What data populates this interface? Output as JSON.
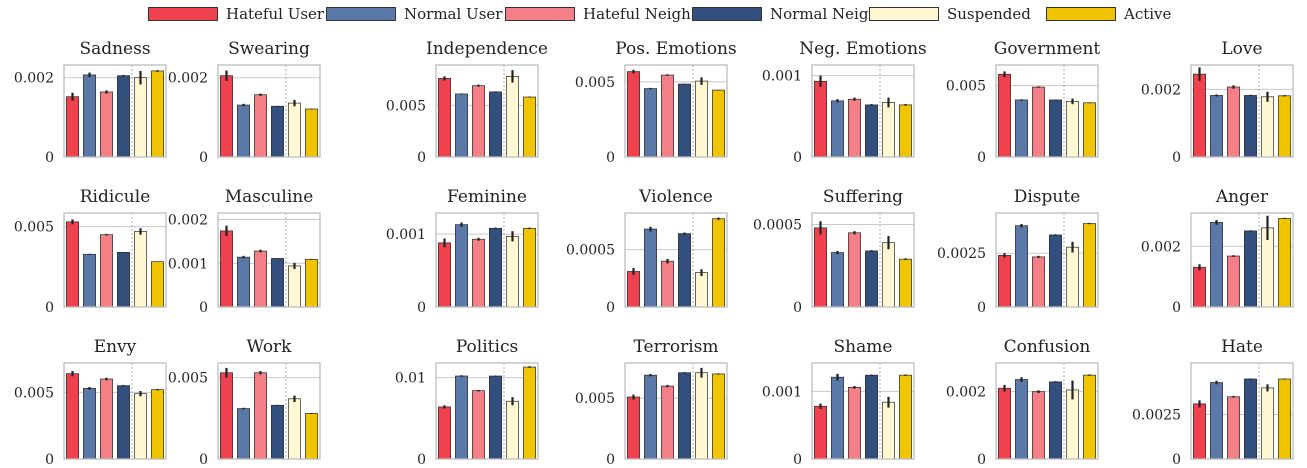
{
  "legend": [
    {
      "name": "Hateful User",
      "color": "#f0414f"
    },
    {
      "name": "Normal User",
      "color": "#5b79a8"
    },
    {
      "name": "Hateful Neigh.",
      "color": "#f47f87"
    },
    {
      "name": "Normal Neigh.",
      "color": "#324f7e"
    },
    {
      "name": "Suspended",
      "color": "#fff8d3"
    },
    {
      "name": "Active",
      "color": "#f0c400"
    }
  ],
  "chart_data": [
    {
      "type": "bar",
      "title": "Sadness",
      "categories": [
        "Hateful User",
        "Normal User",
        "Hateful Neigh.",
        "Normal Neigh.",
        "Suspended",
        "Active"
      ],
      "values": [
        0.00152,
        0.00207,
        0.00164,
        0.00205,
        0.002,
        0.00217
      ],
      "errors": [
        0.0001,
        6e-05,
        4e-05,
        2e-05,
        0.00017,
        2e-05
      ],
      "ylim": [
        0,
        0.00232
      ],
      "ytick_values": [
        0,
        0.002
      ],
      "ytick_labels": [
        "0",
        "0.002"
      ],
      "gridlines": [
        0.002
      ]
    },
    {
      "type": "bar",
      "title": "Swearing",
      "categories": [
        "Hateful User",
        "Normal User",
        "Hateful Neigh.",
        "Normal Neigh.",
        "Suspended",
        "Active"
      ],
      "values": [
        0.00205,
        0.00131,
        0.00157,
        0.00128,
        0.00136,
        0.00121
      ],
      "errors": [
        0.00013,
        3e-05,
        3e-05,
        1e-05,
        8e-05,
        1e-05
      ],
      "ylim": [
        0,
        0.00232
      ],
      "ytick_values": [
        0,
        0.002
      ],
      "ytick_labels": [
        "0",
        "0.002"
      ],
      "gridlines": [
        0.002
      ]
    },
    {
      "type": "bar",
      "title": "Independence",
      "categories": [
        "Hateful User",
        "Normal User",
        "Hateful Neigh.",
        "Normal Neigh.",
        "Suspended",
        "Active"
      ],
      "values": [
        0.0076,
        0.0061,
        0.0069,
        0.0063,
        0.0078,
        0.0058
      ],
      "errors": [
        0.0002,
        5e-05,
        0.0001,
        5e-05,
        0.0006,
        5e-05
      ],
      "ylim": [
        0,
        0.0089
      ],
      "ytick_values": [
        0,
        0.005
      ],
      "ytick_labels": [
        "0",
        "0.005"
      ],
      "gridlines": [
        0.005
      ]
    },
    {
      "type": "bar",
      "title": "Pos. Emotions",
      "categories": [
        "Hateful User",
        "Normal User",
        "Hateful Neigh.",
        "Normal Neigh.",
        "Suspended",
        "Active"
      ],
      "values": [
        0.00568,
        0.00455,
        0.00545,
        0.00485,
        0.00505,
        0.00445
      ],
      "errors": [
        0.00012,
        5e-05,
        5e-05,
        3e-05,
        0.00025,
        2e-05
      ],
      "ylim": [
        0,
        0.00612
      ],
      "ytick_values": [
        0,
        0.005
      ],
      "ytick_labels": [
        "0",
        "0.005"
      ],
      "gridlines": [
        0.005
      ]
    },
    {
      "type": "bar",
      "title": "Neg. Emotions",
      "categories": [
        "Hateful User",
        "Normal User",
        "Hateful Neigh.",
        "Normal Neigh.",
        "Suspended",
        "Active"
      ],
      "values": [
        0.00093,
        0.00069,
        0.00071,
        0.00064,
        0.00067,
        0.00064
      ],
      "errors": [
        7e-05,
        2e-05,
        2e-05,
        1e-05,
        6e-05,
        1e-05
      ],
      "ylim": [
        0,
        0.00113
      ],
      "ytick_values": [
        0,
        0.001
      ],
      "ytick_labels": [
        "0",
        "0.001"
      ],
      "gridlines": [
        0.001
      ]
    },
    {
      "type": "bar",
      "title": "Government",
      "categories": [
        "Hateful User",
        "Normal User",
        "Hateful Neigh.",
        "Normal Neigh.",
        "Suspended",
        "Active"
      ],
      "values": [
        0.0058,
        0.004,
        0.0049,
        0.004,
        0.0039,
        0.0038
      ],
      "errors": [
        0.0002,
        5e-05,
        5e-05,
        3e-05,
        0.0002,
        3e-05
      ],
      "ylim": [
        0,
        0.00645
      ],
      "ytick_values": [
        0,
        0.005
      ],
      "ytick_labels": [
        "0",
        "0.005"
      ],
      "gridlines": [
        0.005
      ]
    },
    {
      "type": "bar",
      "title": "Love",
      "categories": [
        "Hateful User",
        "Normal User",
        "Hateful Neigh.",
        "Normal Neigh.",
        "Suspended",
        "Active"
      ],
      "values": [
        0.00245,
        0.00182,
        0.00207,
        0.00182,
        0.00178,
        0.00181
      ],
      "errors": [
        0.0002,
        3e-05,
        5e-05,
        2e-05,
        0.00015,
        2e-05
      ],
      "ylim": [
        0,
        0.00272
      ],
      "ytick_values": [
        0,
        0.002
      ],
      "ytick_labels": [
        "0",
        "0.002"
      ],
      "gridlines": [
        0.002
      ]
    },
    {
      "type": "bar",
      "title": "Ridicule",
      "categories": [
        "Hateful User",
        "Normal User",
        "Hateful Neigh.",
        "Normal Neigh.",
        "Suspended",
        "Active"
      ],
      "values": [
        0.0053,
        0.00328,
        0.0045,
        0.0034,
        0.0047,
        0.00282
      ],
      "errors": [
        0.00015,
        3e-05,
        5e-05,
        2e-05,
        0.0002,
        2e-05
      ],
      "ylim": [
        0,
        0.00585
      ],
      "ytick_values": [
        0,
        0.005
      ],
      "ytick_labels": [
        "0",
        "0.005"
      ],
      "gridlines": [
        0.005
      ]
    },
    {
      "type": "bar",
      "title": "Masculine",
      "categories": [
        "Hateful User",
        "Normal User",
        "Hateful Neigh.",
        "Normal Neigh.",
        "Suspended",
        "Active"
      ],
      "values": [
        0.00174,
        0.00114,
        0.00128,
        0.00111,
        0.00094,
        0.00109
      ],
      "errors": [
        0.00012,
        3e-05,
        3e-05,
        1e-05,
        7e-05,
        1e-05
      ],
      "ylim": [
        0,
        0.00215
      ],
      "ytick_values": [
        0,
        0.001,
        0.002
      ],
      "ytick_labels": [
        "0",
        "0.001",
        "0.002"
      ],
      "gridlines": [
        0.001,
        0.002
      ]
    },
    {
      "type": "bar",
      "title": "Feminine",
      "categories": [
        "Hateful User",
        "Normal User",
        "Hateful Neigh.",
        "Normal Neigh.",
        "Suspended",
        "Active"
      ],
      "values": [
        0.00088,
        0.00113,
        0.00093,
        0.00108,
        0.00097,
        0.00108
      ],
      "errors": [
        6e-05,
        3e-05,
        2e-05,
        1e-05,
        7e-05,
        1e-05
      ],
      "ylim": [
        0,
        0.00129
      ],
      "ytick_values": [
        0,
        0.001
      ],
      "ytick_labels": [
        "0",
        "0.001"
      ],
      "gridlines": [
        0.001
      ]
    },
    {
      "type": "bar",
      "title": "Violence",
      "categories": [
        "Hateful User",
        "Normal User",
        "Hateful Neigh.",
        "Normal Neigh.",
        "Suspended",
        "Active"
      ],
      "values": [
        0.00031,
        0.00068,
        0.0004,
        0.00064,
        0.0003,
        0.00077
      ],
      "errors": [
        3e-05,
        2e-05,
        2e-05,
        1e-05,
        3e-05,
        1e-05
      ],
      "ylim": [
        0,
        0.00082
      ],
      "ytick_values": [
        0,
        0.0005
      ],
      "ytick_labels": [
        "0",
        "0.0005"
      ],
      "gridlines": [
        0.0005
      ]
    },
    {
      "type": "bar",
      "title": "Suffering",
      "categories": [
        "Hateful User",
        "Normal User",
        "Hateful Neigh.",
        "Normal Neigh.",
        "Suspended",
        "Active"
      ],
      "values": [
        0.00048,
        0.00033,
        0.00045,
        0.00034,
        0.00039,
        0.00029
      ],
      "errors": [
        4e-05,
        1e-05,
        1e-05,
        5e-06,
        4e-05,
        5e-06
      ],
      "ylim": [
        0,
        0.00057
      ],
      "ytick_values": [
        0,
        0.0005
      ],
      "ytick_labels": [
        "0",
        "0.0005"
      ],
      "gridlines": [
        0.0005
      ]
    },
    {
      "type": "bar",
      "title": "Dispute",
      "categories": [
        "Hateful User",
        "Normal User",
        "Hateful Neigh.",
        "Normal Neigh.",
        "Suspended",
        "Active"
      ],
      "values": [
        0.0024,
        0.00378,
        0.00233,
        0.00335,
        0.00278,
        0.00388
      ],
      "errors": [
        0.0001,
        8e-05,
        5e-05,
        3e-05,
        0.00025,
        3e-05
      ],
      "ylim": [
        0,
        0.00437
      ],
      "ytick_values": [
        0,
        0.0025
      ],
      "ytick_labels": [
        "0",
        "0.0025"
      ],
      "gridlines": [
        0.0025
      ]
    },
    {
      "type": "bar",
      "title": "Anger",
      "categories": [
        "Hateful User",
        "Normal User",
        "Hateful Neigh.",
        "Normal Neigh.",
        "Suspended",
        "Active"
      ],
      "values": [
        0.00131,
        0.00279,
        0.00168,
        0.00251,
        0.00261,
        0.00292
      ],
      "errors": [
        0.0001,
        8e-05,
        3e-05,
        2e-05,
        0.0004,
        2e-05
      ],
      "ylim": [
        0,
        0.0031
      ],
      "ytick_values": [
        0,
        0.002
      ],
      "ytick_labels": [
        "0",
        "0.002"
      ],
      "gridlines": [
        0.002
      ]
    },
    {
      "type": "bar",
      "title": "Envy",
      "categories": [
        "Hateful User",
        "Normal User",
        "Hateful Neigh.",
        "Normal Neigh.",
        "Suspended",
        "Active"
      ],
      "values": [
        0.0064,
        0.0053,
        0.006,
        0.0055,
        0.0049,
        0.0052
      ],
      "errors": [
        0.0002,
        0.0001,
        0.0001,
        5e-05,
        0.0002,
        5e-05
      ],
      "ylim": [
        0,
        0.0072
      ],
      "ytick_values": [
        0,
        0.005
      ],
      "ytick_labels": [
        "0",
        "0.005"
      ],
      "gridlines": [
        0.005
      ]
    },
    {
      "type": "bar",
      "title": "Work",
      "categories": [
        "Hateful User",
        "Normal User",
        "Hateful Neigh.",
        "Normal Neigh.",
        "Suspended",
        "Active"
      ],
      "values": [
        0.0053,
        0.0031,
        0.0053,
        0.0033,
        0.0037,
        0.0028
      ],
      "errors": [
        0.0003,
        5e-05,
        0.0001,
        3e-05,
        0.0002,
        3e-05
      ],
      "ylim": [
        0,
        0.0059
      ],
      "ytick_values": [
        0,
        0.005
      ],
      "ytick_labels": [
        "0",
        "0.005"
      ],
      "gridlines": [
        0.005
      ]
    },
    {
      "type": "bar",
      "title": "Politics",
      "categories": [
        "Hateful User",
        "Normal User",
        "Hateful Neigh.",
        "Normal Neigh.",
        "Suspended",
        "Active"
      ],
      "values": [
        0.0064,
        0.0102,
        0.0084,
        0.0102,
        0.0071,
        0.0113
      ],
      "errors": [
        0.0002,
        0.0001,
        0.0001,
        5e-05,
        0.0005,
        0.0001
      ],
      "ylim": [
        0,
        0.0118
      ],
      "ytick_values": [
        0,
        0.01
      ],
      "ytick_labels": [
        "0",
        "0.01"
      ],
      "gridlines": [
        0.01
      ]
    },
    {
      "type": "bar",
      "title": "Terrorism",
      "categories": [
        "Hateful User",
        "Normal User",
        "Hateful Neigh.",
        "Normal Neigh.",
        "Suspended",
        "Active"
      ],
      "values": [
        0.0051,
        0.0069,
        0.006,
        0.0071,
        0.0071,
        0.007
      ],
      "errors": [
        0.0002,
        0.0001,
        0.0001,
        5e-05,
        0.0004,
        5e-05
      ],
      "ylim": [
        0,
        0.0079
      ],
      "ytick_values": [
        0,
        0.005
      ],
      "ytick_labels": [
        "0",
        "0.005"
      ],
      "gridlines": [
        0.005
      ]
    },
    {
      "type": "bar",
      "title": "Shame",
      "categories": [
        "Hateful User",
        "Normal User",
        "Hateful Neigh.",
        "Normal Neigh.",
        "Suspended",
        "Active"
      ],
      "values": [
        0.00078,
        0.00121,
        0.00106,
        0.00124,
        0.00084,
        0.00124
      ],
      "errors": [
        4e-05,
        5e-05,
        2e-05,
        1e-05,
        8e-05,
        1e-05
      ],
      "ylim": [
        0,
        0.00142
      ],
      "ytick_values": [
        0,
        0.001
      ],
      "ytick_labels": [
        "0",
        "0.001"
      ],
      "gridlines": [
        0.001
      ]
    },
    {
      "type": "bar",
      "title": "Confusion",
      "categories": [
        "Hateful User",
        "Normal User",
        "Hateful Neigh.",
        "Normal Neigh.",
        "Suspended",
        "Active"
      ],
      "values": [
        0.0021,
        0.00236,
        0.002,
        0.00229,
        0.00205,
        0.00249
      ],
      "errors": [
        0.0001,
        7e-05,
        4e-05,
        2e-05,
        0.00028,
        2e-05
      ],
      "ylim": [
        0,
        0.00285
      ],
      "ytick_values": [
        0,
        0.002
      ],
      "ytick_labels": [
        "0",
        "0.002"
      ],
      "gridlines": [
        0.002
      ]
    },
    {
      "type": "bar",
      "title": "Hate",
      "categories": [
        "Hateful User",
        "Normal User",
        "Hateful Neigh.",
        "Normal Neigh.",
        "Suspended",
        "Active"
      ],
      "values": [
        0.0031,
        0.0043,
        0.0035,
        0.0045,
        0.004,
        0.0045
      ],
      "errors": [
        0.0002,
        0.0001,
        5e-05,
        3e-05,
        0.0002,
        3e-05
      ],
      "ylim": [
        0,
        0.0054
      ],
      "ytick_values": [
        0,
        0.0025
      ],
      "ytick_labels": [
        "0",
        "0.0025"
      ],
      "gridlines": [
        0.0025
      ]
    }
  ]
}
